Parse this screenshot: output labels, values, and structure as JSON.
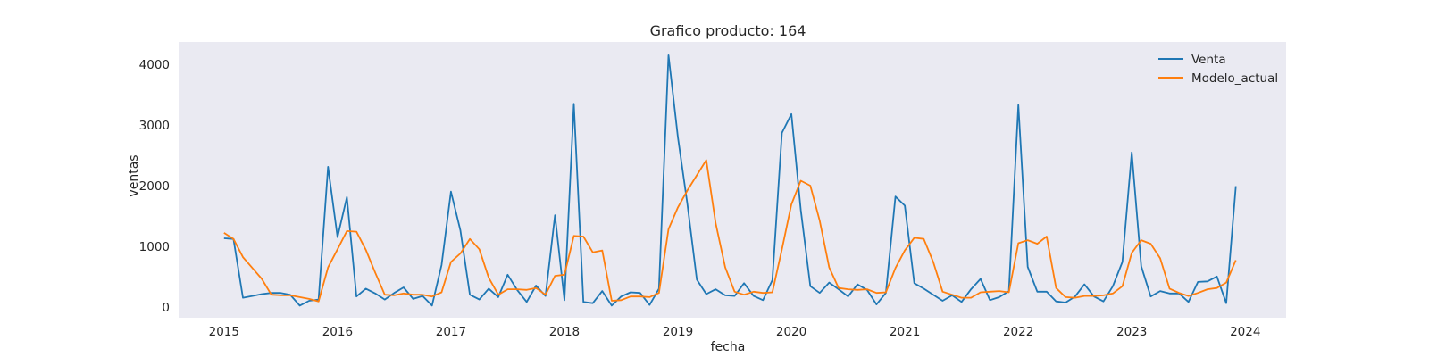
{
  "chart_data": {
    "type": "line",
    "title": "Grafico producto: 164",
    "xlabel": "fecha",
    "ylabel": "ventas",
    "xlim": [
      2014.6,
      2024.36
    ],
    "ylim": [
      -180,
      4370
    ],
    "x_ticks": [
      2015,
      2016,
      2017,
      2018,
      2019,
      2020,
      2021,
      2022,
      2023,
      2024
    ],
    "x_tick_labels": [
      "2015",
      "2016",
      "2017",
      "2018",
      "2019",
      "2020",
      "2021",
      "2022",
      "2023",
      "2024"
    ],
    "y_ticks": [
      0,
      1000,
      2000,
      3000,
      4000
    ],
    "y_tick_labels": [
      "0",
      "1000",
      "2000",
      "3000",
      "4000"
    ],
    "grid": false,
    "background": "#eaeaf2",
    "legend_position": "top-right",
    "series": [
      {
        "name": "Venta",
        "color": "#1f77b4",
        "x": [
          2015.0,
          2015.083,
          2015.167,
          2015.25,
          2015.333,
          2015.417,
          2015.5,
          2015.583,
          2015.667,
          2015.75,
          2015.833,
          2015.917,
          2016.0,
          2016.083,
          2016.167,
          2016.25,
          2016.333,
          2016.417,
          2016.5,
          2016.583,
          2016.667,
          2016.75,
          2016.833,
          2016.917,
          2017.0,
          2017.083,
          2017.167,
          2017.25,
          2017.333,
          2017.417,
          2017.5,
          2017.583,
          2017.667,
          2017.75,
          2017.833,
          2017.917,
          2018.0,
          2018.083,
          2018.167,
          2018.25,
          2018.333,
          2018.417,
          2018.5,
          2018.583,
          2018.667,
          2018.75,
          2018.833,
          2018.917,
          2019.0,
          2019.083,
          2019.167,
          2019.25,
          2019.333,
          2019.417,
          2019.5,
          2019.583,
          2019.667,
          2019.75,
          2019.833,
          2019.917,
          2020.0,
          2020.083,
          2020.167,
          2020.25,
          2020.333,
          2020.417,
          2020.5,
          2020.583,
          2020.667,
          2020.75,
          2020.833,
          2020.917,
          2021.0,
          2021.083,
          2021.167,
          2021.25,
          2021.333,
          2021.417,
          2021.5,
          2021.583,
          2021.667,
          2021.75,
          2021.833,
          2021.917,
          2022.0,
          2022.083,
          2022.167,
          2022.25,
          2022.333,
          2022.417,
          2022.5,
          2022.583,
          2022.667,
          2022.75,
          2022.833,
          2022.917,
          2023.0,
          2023.083,
          2023.167,
          2023.25,
          2023.333,
          2023.417,
          2023.5,
          2023.583,
          2023.667,
          2023.75,
          2023.833,
          2023.917
        ],
        "values": [
          1130,
          1120,
          150,
          180,
          210,
          230,
          230,
          200,
          20,
          100,
          120,
          2310,
          1150,
          1810,
          170,
          300,
          220,
          120,
          230,
          320,
          130,
          180,
          20,
          690,
          1900,
          1260,
          200,
          120,
          300,
          160,
          530,
          280,
          80,
          350,
          180,
          1510,
          110,
          3350,
          80,
          60,
          260,
          20,
          170,
          240,
          230,
          30,
          300,
          4150,
          2800,
          1700,
          450,
          210,
          290,
          190,
          180,
          390,
          180,
          110,
          440,
          2870,
          3180,
          1600,
          340,
          230,
          400,
          290,
          170,
          370,
          280,
          40,
          230,
          1820,
          1670,
          390,
          300,
          200,
          100,
          190,
          80,
          290,
          460,
          110,
          160,
          260,
          3330,
          660,
          250,
          250,
          90,
          70,
          170,
          370,
          170,
          90,
          340,
          740,
          2550,
          670,
          170,
          260,
          220,
          220,
          80,
          410,
          420,
          500,
          60,
          1990
        ]
      },
      {
        "name": "Modelo_actual",
        "color": "#ff7f0e",
        "x": [
          2015.0,
          2015.083,
          2015.167,
          2015.25,
          2015.333,
          2015.417,
          2015.5,
          2015.583,
          2015.667,
          2015.75,
          2015.833,
          2015.917,
          2016.0,
          2016.083,
          2016.167,
          2016.25,
          2016.333,
          2016.417,
          2016.5,
          2016.583,
          2016.667,
          2016.75,
          2016.833,
          2016.917,
          2017.0,
          2017.083,
          2017.167,
          2017.25,
          2017.333,
          2017.417,
          2017.5,
          2017.583,
          2017.667,
          2017.75,
          2017.833,
          2017.917,
          2018.0,
          2018.083,
          2018.167,
          2018.25,
          2018.333,
          2018.417,
          2018.5,
          2018.583,
          2018.667,
          2018.75,
          2018.833,
          2018.917,
          2019.0,
          2019.083,
          2019.167,
          2019.25,
          2019.333,
          2019.417,
          2019.5,
          2019.583,
          2019.667,
          2019.75,
          2019.833,
          2019.917,
          2020.0,
          2020.083,
          2020.167,
          2020.25,
          2020.333,
          2020.417,
          2020.5,
          2020.583,
          2020.667,
          2020.75,
          2020.833,
          2020.917,
          2021.0,
          2021.083,
          2021.167,
          2021.25,
          2021.333,
          2021.417,
          2021.5,
          2021.583,
          2021.667,
          2021.75,
          2021.833,
          2021.917,
          2022.0,
          2022.083,
          2022.167,
          2022.25,
          2022.333,
          2022.417,
          2022.5,
          2022.583,
          2022.667,
          2022.75,
          2022.833,
          2022.917,
          2023.0,
          2023.083,
          2023.167,
          2023.25,
          2023.333,
          2023.417,
          2023.5,
          2023.583,
          2023.667,
          2023.75,
          2023.833,
          2023.917
        ],
        "values": [
          1220,
          1120,
          820,
          640,
          460,
          200,
          190,
          190,
          160,
          130,
          90,
          650,
          950,
          1250,
          1240,
          940,
          560,
          200,
          190,
          220,
          200,
          200,
          170,
          240,
          740,
          880,
          1120,
          950,
          480,
          200,
          290,
          290,
          280,
          310,
          200,
          510,
          530,
          1170,
          1160,
          900,
          930,
          100,
          110,
          170,
          170,
          160,
          230,
          1280,
          1640,
          1920,
          2170,
          2420,
          1380,
          650,
          250,
          200,
          250,
          230,
          240,
          950,
          1690,
          2080,
          2000,
          1420,
          650,
          310,
          290,
          280,
          290,
          230,
          240,
          640,
          930,
          1140,
          1120,
          740,
          250,
          200,
          150,
          150,
          240,
          250,
          260,
          240,
          1050,
          1100,
          1040,
          1160,
          310,
          160,
          150,
          180,
          180,
          190,
          220,
          340,
          890,
          1100,
          1040,
          800,
          300,
          230,
          180,
          230,
          290,
          310,
          400,
          770
        ]
      }
    ]
  }
}
